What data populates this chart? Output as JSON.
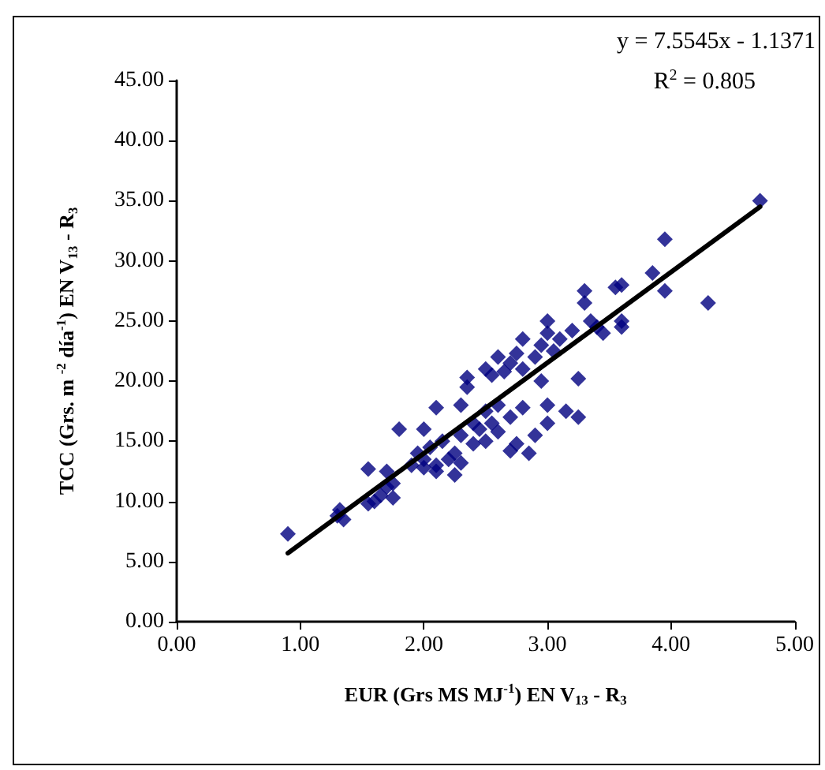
{
  "chart_data": {
    "type": "scatter",
    "xlabel": "EUR (Grs MS MJ$^{-1}$) EN V$_{13}$ - R$_{3}$",
    "ylabel": "TCC (Grs. m $^{-2}$ día$^{-1}$) EN V$_{13}$ - R$_{3}$",
    "annotations": [
      "y = 7.5545x - 1.1371",
      "R$^{2}$ = 0.805"
    ],
    "series": [
      {
        "color": "#000080",
        "marker": "diamond",
        "x": [
          0.9,
          1.3,
          1.32,
          1.35,
          1.55,
          1.55,
          1.6,
          1.65,
          1.7,
          1.7,
          1.75,
          1.75,
          1.8,
          1.9,
          1.95,
          2.0,
          2.0,
          2.0,
          2.05,
          2.1,
          2.1,
          2.1,
          2.15,
          2.2,
          2.25,
          2.25,
          2.3,
          2.3,
          2.3,
          2.35,
          2.35,
          2.4,
          2.4,
          2.45,
          2.5,
          2.5,
          2.5,
          2.55,
          2.55,
          2.6,
          2.6,
          2.6,
          2.65,
          2.7,
          2.7,
          2.7,
          2.75,
          2.75,
          2.8,
          2.8,
          2.8,
          2.85,
          2.9,
          2.9,
          2.95,
          2.95,
          3.0,
          3.0,
          3.0,
          3.0,
          3.05,
          3.1,
          3.15,
          3.2,
          3.25,
          3.25,
          3.3,
          3.3,
          3.35,
          3.4,
          3.45,
          3.55,
          3.6,
          3.6,
          3.6,
          3.85,
          3.95,
          3.95,
          4.3,
          4.72
        ],
        "values": [
          7.3,
          8.8,
          9.3,
          8.5,
          9.8,
          12.7,
          10.0,
          10.5,
          11.2,
          12.5,
          10.3,
          11.5,
          16.0,
          13.0,
          14.0,
          12.8,
          13.5,
          16.0,
          14.5,
          12.5,
          13.0,
          17.8,
          15.0,
          13.5,
          12.2,
          14.0,
          15.5,
          13.2,
          18.0,
          19.5,
          20.3,
          16.5,
          14.8,
          16.0,
          15.0,
          17.5,
          21.0,
          20.5,
          16.5,
          18.0,
          22.0,
          15.8,
          20.8,
          21.5,
          14.2,
          17.0,
          22.3,
          14.8,
          21.0,
          17.8,
          23.5,
          14.0,
          22.0,
          15.5,
          23.0,
          20.0,
          24.0,
          25.0,
          16.5,
          18.0,
          22.5,
          23.5,
          17.5,
          24.2,
          20.2,
          17.0,
          26.5,
          27.5,
          25.0,
          24.5,
          24.0,
          27.8,
          28.0,
          25.0,
          24.5,
          29.0,
          31.8,
          27.5,
          26.5,
          35.0
        ]
      },
      {
        "type": "line",
        "color": "#000000",
        "marker": "none",
        "x": [
          0.9,
          4.72
        ],
        "values": [
          5.7,
          34.5
        ]
      }
    ],
    "xlim": [
      0,
      5
    ],
    "ylim": [
      0,
      45
    ],
    "xticks": [
      {
        "value": 0,
        "label": "0.00"
      },
      {
        "value": 1,
        "label": "1.00"
      },
      {
        "value": 2,
        "label": "2.00"
      },
      {
        "value": 3,
        "label": "3.00"
      },
      {
        "value": 4,
        "label": "4.00"
      },
      {
        "value": 5,
        "label": "5.00"
      }
    ],
    "yticks": [
      {
        "value": 0,
        "label": "0.00"
      },
      {
        "value": 5,
        "label": "5.00"
      },
      {
        "value": 10,
        "label": "10.00"
      },
      {
        "value": 15,
        "label": "15.00"
      },
      {
        "value": 20,
        "label": "20.00"
      },
      {
        "value": 25,
        "label": "25.00"
      },
      {
        "value": 30,
        "label": "30.00"
      },
      {
        "value": 35,
        "label": "35.00"
      },
      {
        "value": 40,
        "label": "40.00"
      },
      {
        "value": 45,
        "label": "45.00"
      }
    ],
    "grid": false
  }
}
